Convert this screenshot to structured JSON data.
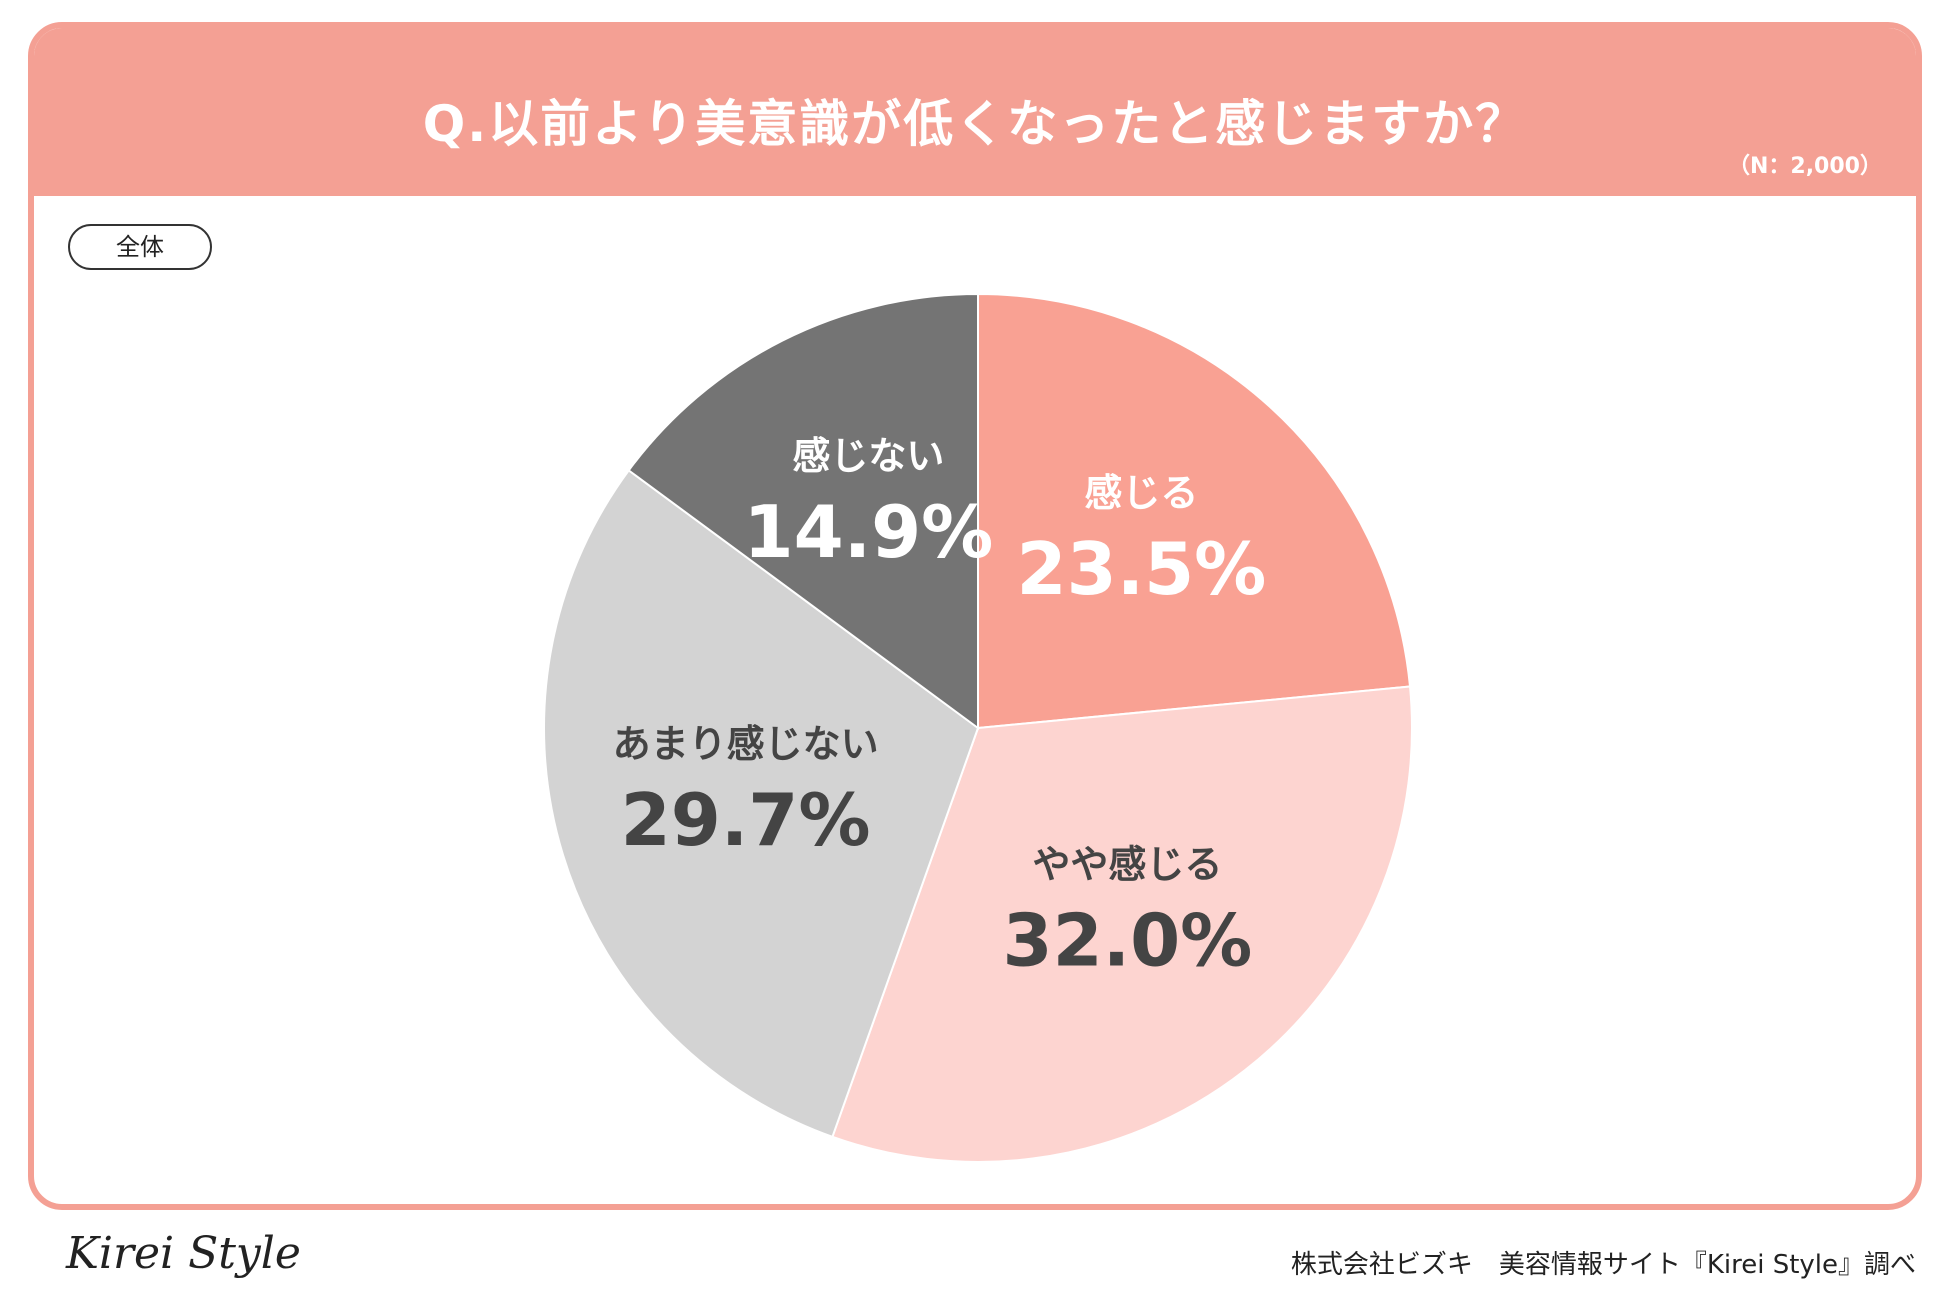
{
  "header": {
    "question": "Q.以前より美意識が低くなったと感じますか？",
    "sample_size": "（N：2,000）"
  },
  "segment": "全体",
  "chart_data": {
    "type": "pie",
    "title": "Q.以前より美意識が低くなったと感じますか？",
    "slices": [
      {
        "label": "感じる",
        "value": 23.5,
        "display": "23.5%",
        "color": "#f9a193",
        "text_color": "#ffffff"
      },
      {
        "label": "やや感じる",
        "value": 32.0,
        "display": "32.0%",
        "color": "#fdd4d0",
        "text_color": "#444444"
      },
      {
        "label": "あまり感じない",
        "value": 29.7,
        "display": "29.7%",
        "color": "#d3d3d3",
        "text_color": "#444444"
      },
      {
        "label": "感じない",
        "value": 14.9,
        "display": "14.9%",
        "color": "#747474",
        "text_color": "#ffffff"
      }
    ],
    "start": "12 o'clock",
    "direction": "clockwise"
  },
  "footer": {
    "logo": "Kirei Style",
    "credit": "株式会社ビズキ　美容情報サイト『Kirei Style』調べ"
  }
}
